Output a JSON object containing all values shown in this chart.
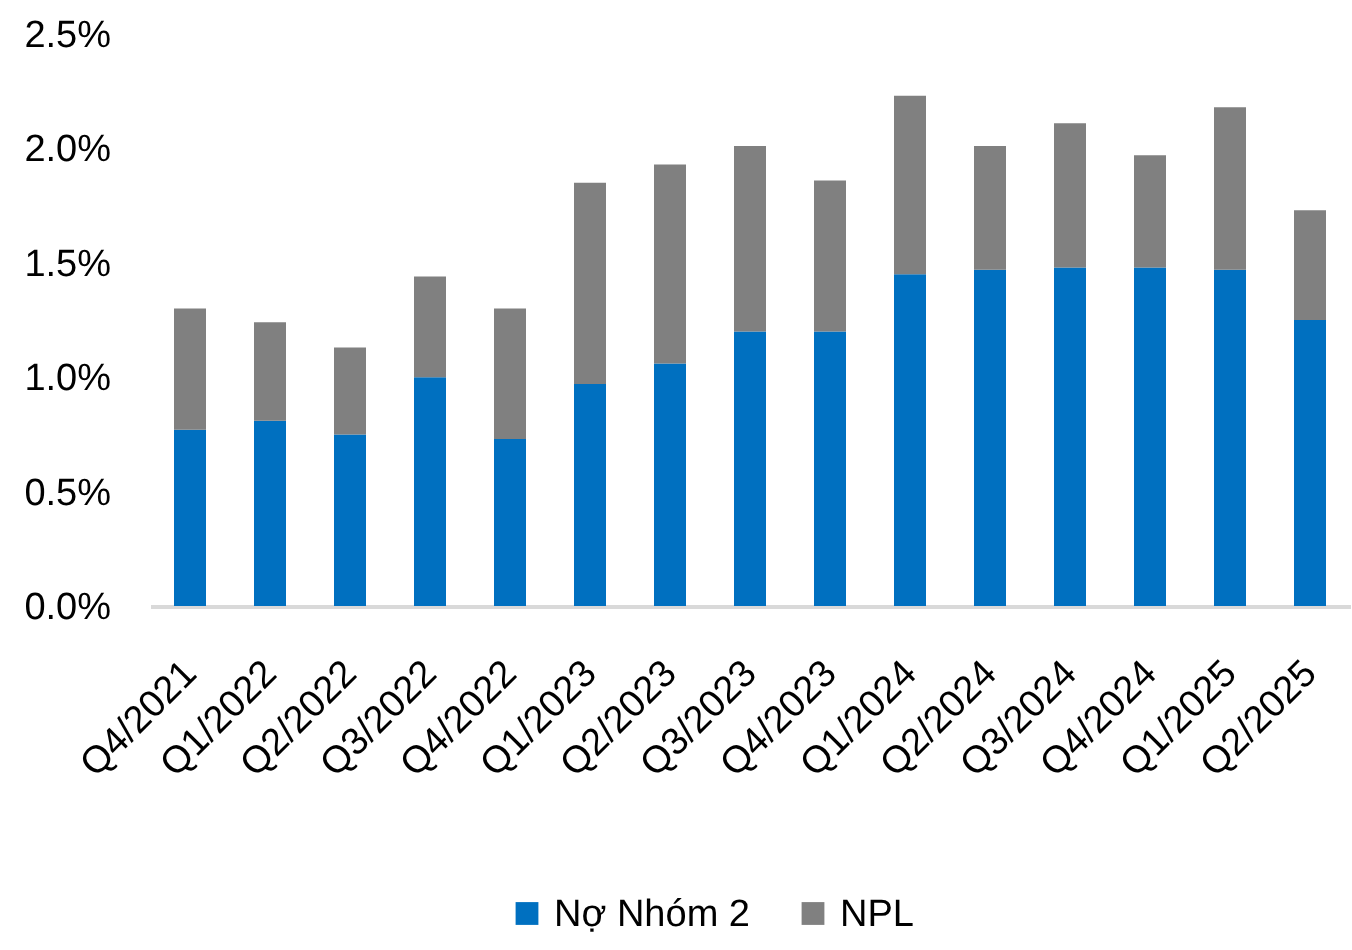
{
  "chart_data": {
    "type": "bar",
    "stacked": true,
    "categories": [
      "Q4/2021",
      "Q1/2022",
      "Q2/2022",
      "Q3/2022",
      "Q4/2022",
      "Q1/2023",
      "Q2/2023",
      "Q3/2023",
      "Q4/2023",
      "Q1/2024",
      "Q2/2024",
      "Q3/2024",
      "Q4/2024",
      "Q1/2025",
      "Q2/2025"
    ],
    "series": [
      {
        "name": "Nợ Nhóm 2",
        "color": "#0070c0",
        "values": [
          0.77,
          0.81,
          0.75,
          1.0,
          0.73,
          0.97,
          1.06,
          1.2,
          1.2,
          1.45,
          1.47,
          1.48,
          1.48,
          1.47,
          1.25
        ]
      },
      {
        "name": "NPL",
        "color": "#808080",
        "values": [
          0.53,
          0.43,
          0.38,
          0.44,
          0.57,
          0.88,
          0.87,
          0.81,
          0.66,
          0.78,
          0.54,
          0.63,
          0.49,
          0.71,
          0.48
        ]
      }
    ],
    "ylim": [
      0,
      2.5
    ],
    "yticks": [
      {
        "value": 0,
        "label": "0.0%"
      },
      {
        "value": 0.5,
        "label": "0.5%"
      },
      {
        "value": 1,
        "label": "1.0%"
      },
      {
        "value": 1.5,
        "label": "1.5%"
      },
      {
        "value": 2,
        "label": "2.0%"
      },
      {
        "value": 2.5,
        "label": "2.5%"
      }
    ],
    "legend": "bottom"
  }
}
